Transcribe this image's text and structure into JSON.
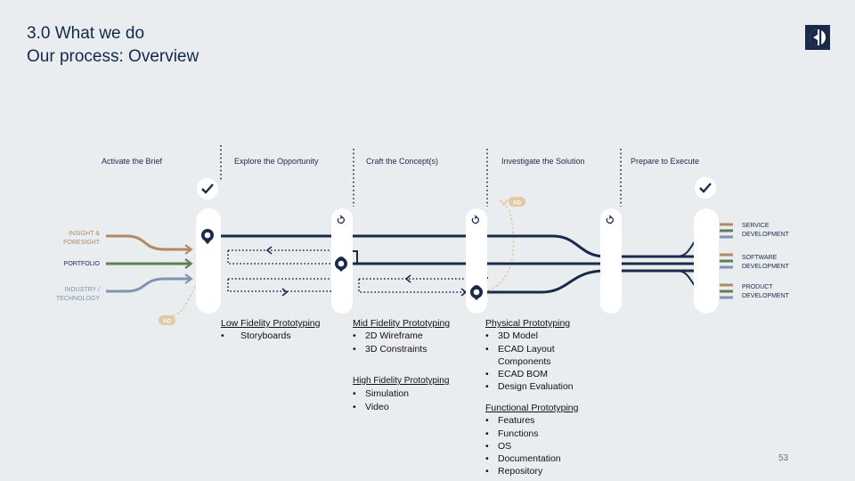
{
  "header": {
    "line1": "3.0 What we do",
    "line2": "Our process: Overview"
  },
  "logo": {
    "icon": "electrolux-logo-icon"
  },
  "phases": [
    "Activate the Brief",
    "Explore the Opportunity",
    "Craft the Concept(s)",
    "Investigate the Solution",
    "Prepare to Execute"
  ],
  "inputs": [
    {
      "line1": "INSIGHT &",
      "line2": "FORESIGHT",
      "color": "#b08a64"
    },
    {
      "line1": "PORTFOLIO",
      "line2": "",
      "color": "#5e7e55"
    },
    {
      "line1": "INDUSTRY /",
      "line2": "TECHNOLOGY",
      "color": "#7f93b3"
    }
  ],
  "outputs": [
    {
      "line1": "SERVICE",
      "line2": "DEVELOPMENT"
    },
    {
      "line1": "SOFTWARE",
      "line2": "DEVELOPMENT"
    },
    {
      "line1": "PRODUCT",
      "line2": "DEVELOPMENT"
    }
  ],
  "badges": {
    "ad_left": "AD",
    "ad_right": "AD"
  },
  "prototyping": {
    "low": {
      "heading": "Low Fidelity Prototyping",
      "items": [
        "Storyboards"
      ]
    },
    "mid": {
      "heading": "Mid Fidelity Prototyping",
      "items": [
        "2D Wireframe",
        "3D Constraints"
      ]
    },
    "high": {
      "heading": "High Fidelity Prototyping",
      "items": [
        "Simulation",
        "Video"
      ]
    },
    "physical": {
      "heading": "Physical Prototyping",
      "items": [
        "3D Model",
        "ECAD Layout",
        "Components",
        "ECAD BOM",
        "Design Evaluation"
      ]
    },
    "functional": {
      "heading": "Functional Prototyping",
      "items": [
        "Features",
        "Functions",
        "OS",
        "Documentation",
        "Repository"
      ]
    }
  },
  "page_number": "53",
  "colors": {
    "navy": "#1b2a4a",
    "insight": "#b08a64",
    "portfolio": "#5e7e55",
    "industry": "#7f93b3",
    "ad_badge": "#e2c9a4",
    "background": "#e9edf0"
  },
  "icons": [
    "check-icon",
    "refresh-icon",
    "location-pin-icon",
    "arrow-right-icon",
    "arrow-left-icon"
  ]
}
